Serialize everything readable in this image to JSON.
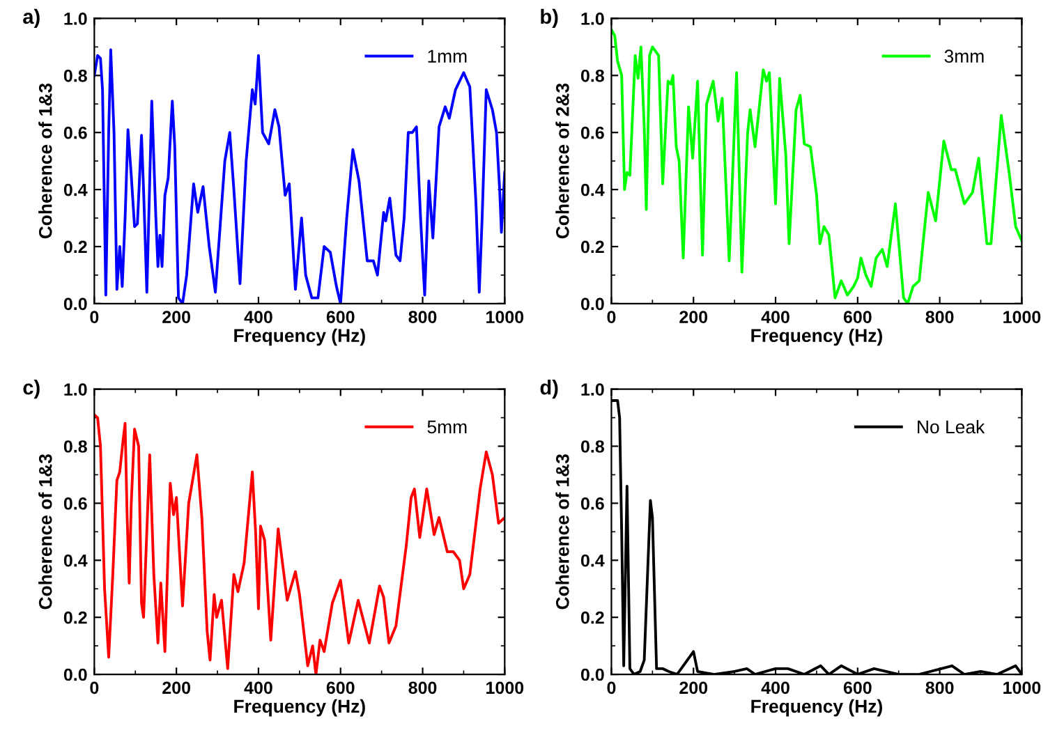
{
  "chart_data": [
    {
      "type": "line",
      "title": "a)",
      "xlabel": "Frequency (Hz)",
      "ylabel": "Coherence of 1&3",
      "xlim": [
        0,
        1000
      ],
      "ylim": [
        0,
        1.0
      ],
      "xticks": [
        0,
        200,
        400,
        600,
        800,
        1000
      ],
      "yticks": [
        {
          "value": 0,
          "label": "0.0"
        },
        {
          "value": 0.2,
          "label": "0.2"
        },
        {
          "value": 0.4,
          "label": "0.4"
        },
        {
          "value": 0.6,
          "label": "0.6"
        },
        {
          "value": 0.8,
          "label": "0.8"
        },
        {
          "value": 1.0,
          "label": "1.0"
        }
      ],
      "legend": "top right",
      "grid": false,
      "series": [
        {
          "name": "1mm",
          "color": "#0000ff",
          "x": [
            0,
            8,
            15,
            20,
            28,
            35,
            40,
            48,
            55,
            62,
            68,
            75,
            82,
            90,
            98,
            105,
            115,
            120,
            128,
            140,
            150,
            155,
            160,
            165,
            172,
            180,
            190,
            196,
            205,
            215,
            225,
            242,
            252,
            265,
            280,
            295,
            318,
            330,
            340,
            355,
            370,
            385,
            392,
            400,
            410,
            425,
            440,
            450,
            465,
            475,
            490,
            505,
            515,
            530,
            545,
            560,
            575,
            590,
            600,
            615,
            630,
            645,
            665,
            680,
            690,
            705,
            710,
            720,
            735,
            745,
            755,
            765,
            775,
            785,
            795,
            805,
            815,
            825,
            840,
            855,
            865,
            880,
            900,
            915,
            930,
            938,
            945,
            955,
            970,
            980,
            988,
            992,
            1000
          ],
          "values": [
            0.8,
            0.87,
            0.86,
            0.75,
            0.03,
            0.6,
            0.89,
            0.6,
            0.05,
            0.2,
            0.06,
            0.3,
            0.61,
            0.45,
            0.27,
            0.28,
            0.59,
            0.4,
            0.04,
            0.71,
            0.3,
            0.13,
            0.24,
            0.13,
            0.38,
            0.44,
            0.71,
            0.55,
            0.02,
            0.0,
            0.1,
            0.42,
            0.32,
            0.41,
            0.2,
            0.04,
            0.5,
            0.6,
            0.4,
            0.07,
            0.5,
            0.75,
            0.7,
            0.87,
            0.6,
            0.56,
            0.68,
            0.62,
            0.38,
            0.42,
            0.05,
            0.3,
            0.1,
            0.02,
            0.02,
            0.2,
            0.18,
            0.06,
            0.0,
            0.3,
            0.54,
            0.43,
            0.15,
            0.15,
            0.1,
            0.32,
            0.29,
            0.37,
            0.17,
            0.15,
            0.3,
            0.6,
            0.6,
            0.62,
            0.3,
            0.03,
            0.43,
            0.23,
            0.62,
            0.69,
            0.65,
            0.75,
            0.81,
            0.76,
            0.35,
            0.04,
            0.3,
            0.75,
            0.68,
            0.6,
            0.39,
            0.25,
            0.46
          ]
        }
      ]
    },
    {
      "type": "line",
      "title": "b)",
      "xlabel": "Frequency (Hz)",
      "ylabel": "Coherence of 2&3",
      "xlim": [
        0,
        1000
      ],
      "ylim": [
        0,
        1.0
      ],
      "xticks": [
        0,
        200,
        400,
        600,
        800,
        1000
      ],
      "yticks": [
        {
          "value": 0,
          "label": "0.0"
        },
        {
          "value": 0.2,
          "label": "0.2"
        },
        {
          "value": 0.4,
          "label": "0.4"
        },
        {
          "value": 0.6,
          "label": "0.6"
        },
        {
          "value": 0.8,
          "label": "0.8"
        },
        {
          "value": 1.0,
          "label": "1.0"
        }
      ],
      "legend": "top right",
      "grid": false,
      "series": [
        {
          "name": "3mm",
          "color": "#00ff00",
          "x": [
            0,
            8,
            15,
            25,
            32,
            38,
            45,
            58,
            65,
            72,
            80,
            85,
            93,
            100,
            115,
            125,
            138,
            145,
            150,
            158,
            165,
            175,
            188,
            198,
            210,
            222,
            232,
            248,
            260,
            270,
            287,
            305,
            318,
            332,
            338,
            350,
            370,
            378,
            385,
            400,
            410,
            425,
            433,
            450,
            460,
            470,
            485,
            500,
            508,
            518,
            530,
            545,
            560,
            575,
            590,
            600,
            608,
            620,
            633,
            645,
            660,
            672,
            692,
            712,
            722,
            735,
            750,
            772,
            790,
            810,
            828,
            838,
            860,
            880,
            895,
            915,
            925,
            950,
            970,
            985,
            1000
          ],
          "values": [
            0.96,
            0.94,
            0.85,
            0.8,
            0.4,
            0.46,
            0.45,
            0.87,
            0.79,
            0.9,
            0.62,
            0.33,
            0.87,
            0.9,
            0.87,
            0.42,
            0.78,
            0.77,
            0.8,
            0.55,
            0.5,
            0.16,
            0.69,
            0.51,
            0.78,
            0.17,
            0.7,
            0.78,
            0.64,
            0.72,
            0.15,
            0.81,
            0.11,
            0.6,
            0.68,
            0.55,
            0.82,
            0.78,
            0.81,
            0.35,
            0.79,
            0.52,
            0.21,
            0.68,
            0.73,
            0.56,
            0.55,
            0.38,
            0.21,
            0.27,
            0.24,
            0.02,
            0.08,
            0.03,
            0.06,
            0.09,
            0.16,
            0.1,
            0.06,
            0.16,
            0.19,
            0.13,
            0.35,
            0.02,
            0.0,
            0.06,
            0.08,
            0.39,
            0.29,
            0.57,
            0.47,
            0.47,
            0.35,
            0.39,
            0.51,
            0.21,
            0.21,
            0.66,
            0.45,
            0.27,
            0.22
          ]
        }
      ]
    },
    {
      "type": "line",
      "title": "c)",
      "xlabel": "Frequency (Hz)",
      "ylabel": "Coherence of 1&3",
      "xlim": [
        0,
        1000
      ],
      "ylim": [
        0,
        1.0
      ],
      "xticks": [
        0,
        200,
        400,
        600,
        800,
        1000
      ],
      "yticks": [
        {
          "value": 0,
          "label": "0.0"
        },
        {
          "value": 0.2,
          "label": "0.2"
        },
        {
          "value": 0.4,
          "label": "0.4"
        },
        {
          "value": 0.6,
          "label": "0.6"
        },
        {
          "value": 0.8,
          "label": "0.8"
        },
        {
          "value": 1.0,
          "label": "1.0"
        }
      ],
      "legend": "top right",
      "grid": false,
      "series": [
        {
          "name": "5mm",
          "color": "#ff0000",
          "x": [
            0,
            8,
            15,
            25,
            35,
            45,
            55,
            62,
            70,
            75,
            80,
            85,
            90,
            98,
            108,
            115,
            120,
            135,
            145,
            155,
            162,
            172,
            185,
            193,
            200,
            215,
            230,
            250,
            262,
            275,
            282,
            292,
            298,
            310,
            325,
            340,
            350,
            365,
            385,
            393,
            400,
            405,
            415,
            430,
            448,
            470,
            490,
            500,
            520,
            532,
            540,
            550,
            560,
            580,
            600,
            620,
            643,
            670,
            695,
            705,
            718,
            735,
            760,
            772,
            780,
            793,
            810,
            828,
            840,
            860,
            875,
            890,
            900,
            915,
            940,
            955,
            970,
            985,
            1000
          ],
          "values": [
            0.91,
            0.9,
            0.8,
            0.3,
            0.06,
            0.35,
            0.68,
            0.71,
            0.82,
            0.88,
            0.55,
            0.32,
            0.6,
            0.86,
            0.8,
            0.25,
            0.2,
            0.77,
            0.35,
            0.11,
            0.32,
            0.08,
            0.67,
            0.56,
            0.62,
            0.24,
            0.6,
            0.77,
            0.55,
            0.15,
            0.05,
            0.28,
            0.2,
            0.26,
            0.02,
            0.35,
            0.29,
            0.39,
            0.71,
            0.5,
            0.23,
            0.52,
            0.47,
            0.12,
            0.51,
            0.26,
            0.36,
            0.28,
            0.03,
            0.1,
            0.0,
            0.12,
            0.08,
            0.25,
            0.33,
            0.11,
            0.26,
            0.11,
            0.31,
            0.27,
            0.11,
            0.17,
            0.45,
            0.62,
            0.65,
            0.48,
            0.65,
            0.49,
            0.55,
            0.43,
            0.43,
            0.4,
            0.3,
            0.35,
            0.65,
            0.78,
            0.7,
            0.53,
            0.55
          ]
        }
      ]
    },
    {
      "type": "line",
      "title": "d)",
      "xlabel": "Frequency (Hz)",
      "ylabel": "Coherence of 1&3",
      "xlim": [
        0,
        1000
      ],
      "ylim": [
        0,
        1.0
      ],
      "xticks": [
        0,
        200,
        400,
        600,
        800,
        1000
      ],
      "yticks": [
        {
          "value": 0,
          "label": "0.0"
        },
        {
          "value": 0.2,
          "label": "0.2"
        },
        {
          "value": 0.4,
          "label": "0.4"
        },
        {
          "value": 0.6,
          "label": "0.6"
        },
        {
          "value": 0.8,
          "label": "0.8"
        },
        {
          "value": 1.0,
          "label": "1.0"
        }
      ],
      "legend": "top right",
      "grid": false,
      "series": [
        {
          "name": "No Leak",
          "color": "#000000",
          "x": [
            0,
            15,
            20,
            25,
            30,
            38,
            45,
            55,
            70,
            80,
            95,
            100,
            110,
            125,
            140,
            160,
            200,
            210,
            250,
            300,
            330,
            350,
            400,
            430,
            470,
            510,
            530,
            560,
            600,
            640,
            700,
            750,
            830,
            860,
            900,
            940,
            985,
            1000
          ],
          "values": [
            0.96,
            0.96,
            0.9,
            0.5,
            0.03,
            0.66,
            0.02,
            0.0,
            0.01,
            0.05,
            0.61,
            0.55,
            0.02,
            0.02,
            0.01,
            0.0,
            0.08,
            0.01,
            0.0,
            0.01,
            0.02,
            0.0,
            0.02,
            0.02,
            0.0,
            0.03,
            0.0,
            0.03,
            0.0,
            0.02,
            0.0,
            0.0,
            0.03,
            0.0,
            0.01,
            0.0,
            0.03,
            0.0
          ]
        }
      ]
    }
  ]
}
